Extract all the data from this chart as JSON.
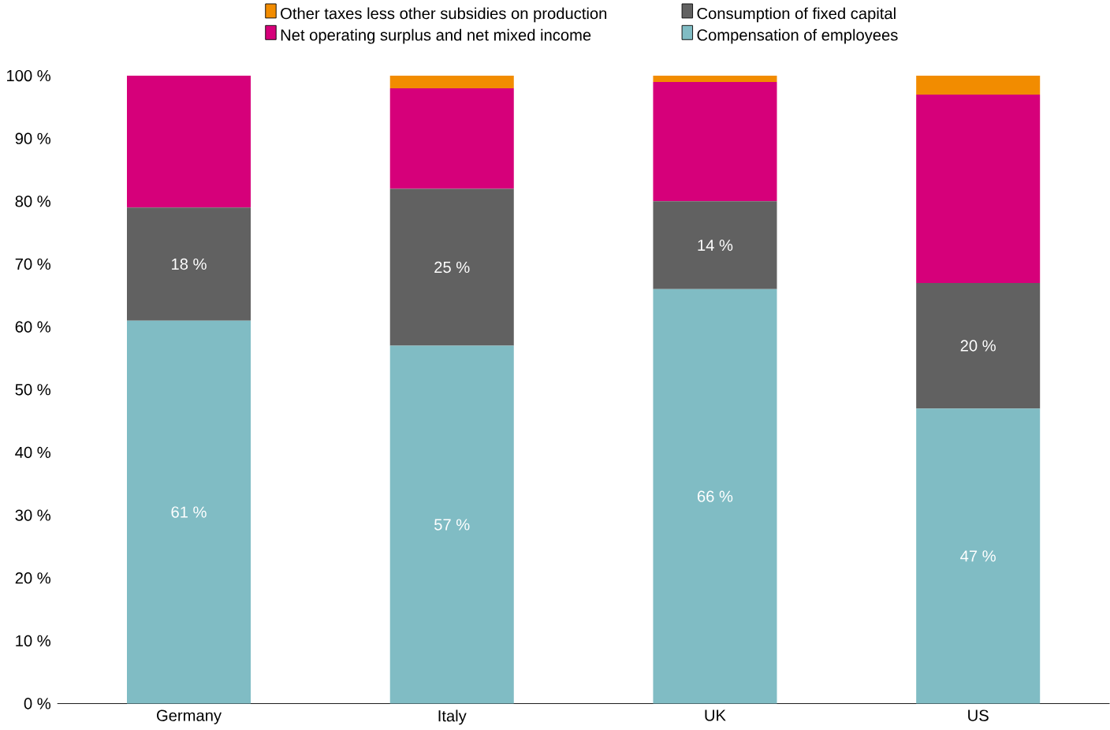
{
  "chart_data": {
    "type": "bar",
    "stacked": true,
    "categories": [
      "Germany",
      "Italy",
      "UK",
      "US"
    ],
    "series": [
      {
        "name": "Compensation of employees",
        "color": "#80bcc4",
        "values": [
          61,
          57,
          66,
          47
        ],
        "value_labels": [
          "61 %",
          "57 %",
          "66 %",
          "47 %"
        ]
      },
      {
        "name": "Consumption of fixed capital",
        "color": "#616161",
        "values": [
          18,
          25,
          14,
          20
        ],
        "value_labels": [
          "18 %",
          "25 %",
          "14 %",
          "20 %"
        ]
      },
      {
        "name": "Net operating surplus and net mixed income",
        "color": "#d6007a",
        "values": [
          21,
          16,
          19,
          30
        ]
      },
      {
        "name": "Other taxes less other subsidies on production",
        "color": "#f28c00",
        "values": [
          0,
          2,
          1,
          3
        ]
      }
    ],
    "ylim": [
      0,
      100
    ],
    "yticks": [
      {
        "value": 0,
        "label": "0 %"
      },
      {
        "value": 10,
        "label": "10 %"
      },
      {
        "value": 20,
        "label": "20 %"
      },
      {
        "value": 30,
        "label": "30 %"
      },
      {
        "value": 40,
        "label": "40 %"
      },
      {
        "value": 50,
        "label": "50 %"
      },
      {
        "value": 60,
        "label": "60 %"
      },
      {
        "value": 70,
        "label": "70 %"
      },
      {
        "value": 80,
        "label": "80 %"
      },
      {
        "value": 90,
        "label": "90 %"
      },
      {
        "value": 100,
        "label": "100 %"
      }
    ],
    "legend": "top",
    "grid": false
  }
}
